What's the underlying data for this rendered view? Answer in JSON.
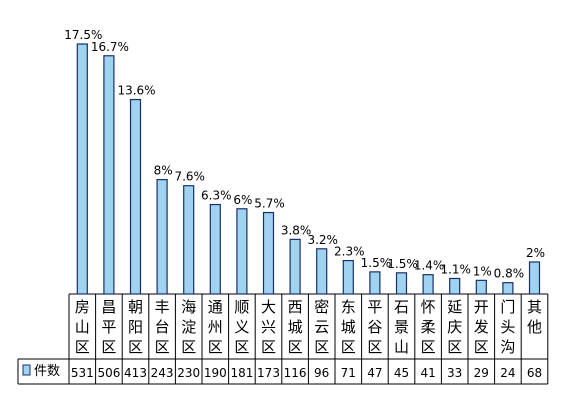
{
  "chart_data": {
    "type": "bar",
    "legend": {
      "label": "件数",
      "placement": "left of data table"
    },
    "colors": {
      "bar_fill": "#9fd3f0",
      "bar_stroke": "#1a2f6a",
      "grid": "#000000"
    },
    "categories": [
      "房山区",
      "昌平区",
      "朝阳区",
      "丰台区",
      "海淀区",
      "通州区",
      "顺义区",
      "大兴区",
      "西城区",
      "密云区",
      "东城区",
      "平谷区",
      "石景山",
      "怀柔区",
      "延庆区",
      "开发区",
      "门头沟",
      "其他"
    ],
    "category_chars": [
      [
        "房",
        "山",
        "区"
      ],
      [
        "昌",
        "平",
        "区"
      ],
      [
        "朝",
        "阳",
        "区"
      ],
      [
        "丰",
        "台",
        "区"
      ],
      [
        "海",
        "淀",
        "区"
      ],
      [
        "通",
        "州",
        "区"
      ],
      [
        "顺",
        "义",
        "区"
      ],
      [
        "大",
        "兴",
        "区"
      ],
      [
        "西",
        "城",
        "区"
      ],
      [
        "密",
        "云",
        "区"
      ],
      [
        "东",
        "城",
        "区"
      ],
      [
        "平",
        "谷",
        "区"
      ],
      [
        "石",
        "景",
        "山"
      ],
      [
        "怀",
        "柔",
        "区"
      ],
      [
        "延",
        "庆",
        "区"
      ],
      [
        "开",
        "发",
        "区"
      ],
      [
        "门",
        "头",
        "沟"
      ],
      [
        "其",
        "他"
      ]
    ],
    "series": [
      {
        "name": "件数",
        "values": [
          531,
          506,
          413,
          243,
          230,
          190,
          181,
          173,
          116,
          96,
          71,
          47,
          45,
          41,
          33,
          29,
          24,
          68
        ],
        "value_labels": [
          "531",
          "506",
          "413",
          "243",
          "230",
          "190",
          "181",
          "173",
          "116",
          "96",
          "71",
          "47",
          "45",
          "41",
          "33",
          "29",
          "24",
          "68"
        ]
      }
    ],
    "percent_labels": [
      "17.5%",
      "16.7%",
      "13.6%",
      "8%",
      "7.6%",
      "6.3%",
      "6%",
      "5.7%",
      "3.8%",
      "3.2%",
      "2.3%",
      "1.5%",
      "1.5%",
      "1.4%",
      "1.1%",
      "1%",
      "0.8%",
      "2%"
    ],
    "ylim": [
      0,
      531
    ],
    "grid": false,
    "title": "",
    "xlabel": "",
    "ylabel": ""
  }
}
